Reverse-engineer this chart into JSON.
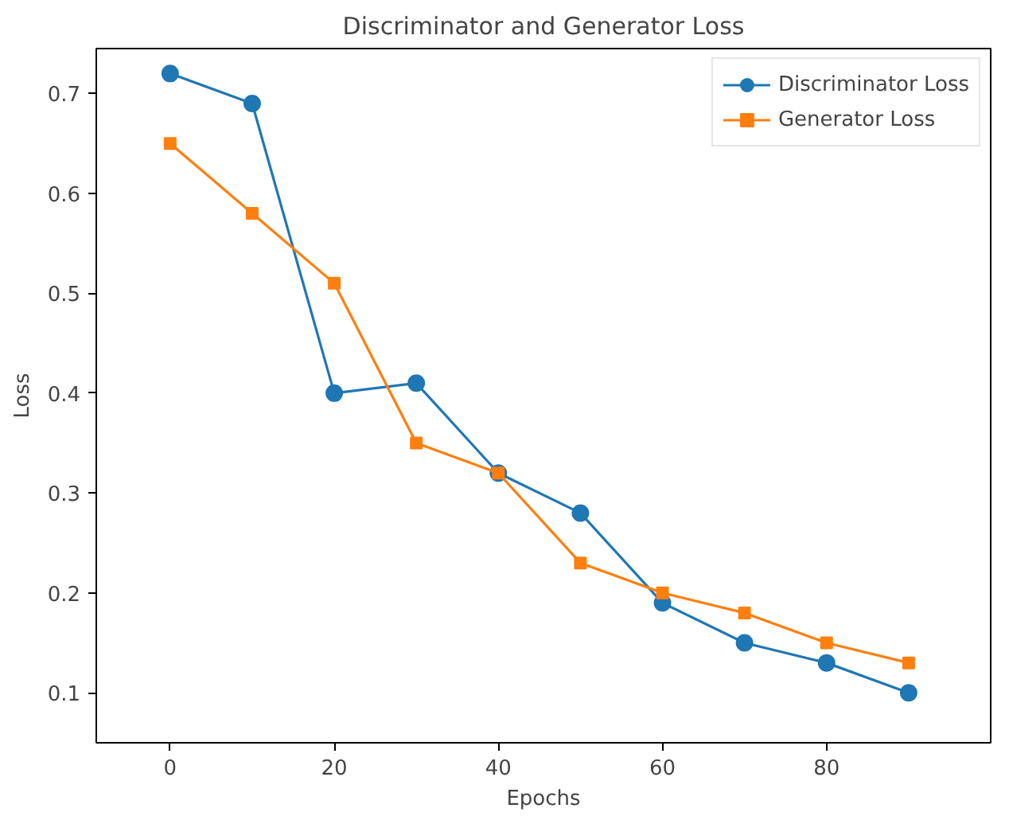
{
  "chart_data": {
    "type": "line",
    "title": "Discriminator and Generator Loss",
    "xlabel": "Epochs",
    "ylabel": "Loss",
    "x": [
      0,
      10,
      20,
      30,
      40,
      50,
      60,
      70,
      80,
      90
    ],
    "series": [
      {
        "name": "Discriminator Loss",
        "color": "#1f77b4",
        "marker": "circle",
        "values": [
          0.72,
          0.69,
          0.4,
          0.41,
          0.32,
          0.28,
          0.19,
          0.15,
          0.13,
          0.1
        ]
      },
      {
        "name": "Generator Loss",
        "color": "#ff7f0e",
        "marker": "square",
        "values": [
          0.65,
          0.58,
          0.51,
          0.35,
          0.32,
          0.23,
          0.2,
          0.18,
          0.15,
          0.13
        ]
      }
    ],
    "xlim": [
      -9,
      100
    ],
    "ylim": [
      0.05,
      0.745
    ],
    "xticks": [
      0,
      20,
      40,
      60,
      80
    ],
    "yticks": [
      0.1,
      0.2,
      0.3,
      0.4,
      0.5,
      0.6,
      0.7
    ],
    "grid": false,
    "legend": "top right",
    "line_style": "solid"
  }
}
